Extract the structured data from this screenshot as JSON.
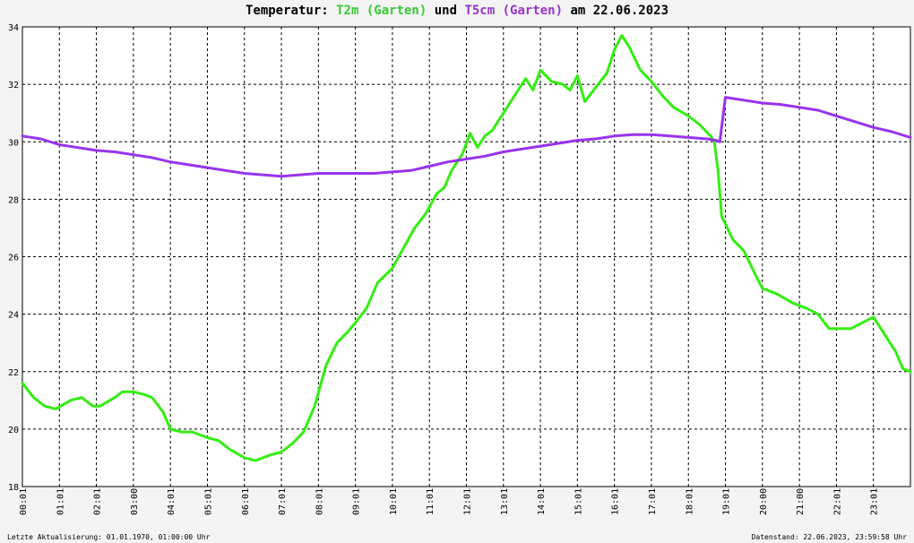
{
  "title": {
    "prefix": "Temperatur: ",
    "series1": "T2m (Garten)",
    "join": " und ",
    "series2": "T5cm (Garten)",
    "suffix": " am 22.06.2023"
  },
  "footer": {
    "left": "Letzte Aktualisierung: 01.01.1970, 01:00:00 Uhr",
    "right": "Datenstand: 22.06.2023, 23:59:58 Uhr"
  },
  "colors": {
    "t2m": "#33ee11",
    "t5cm": "#9933ee",
    "grid": "#000000",
    "background": "#ffffff"
  },
  "chart_data": {
    "type": "line",
    "title": "Temperatur: T2m (Garten) und T5cm (Garten) am 22.06.2023",
    "xlabel": "",
    "ylabel": "",
    "x_unit": "hours",
    "xlim": [
      0,
      24
    ],
    "ylim": [
      18,
      34
    ],
    "y_ticks": [
      18,
      20,
      22,
      24,
      26,
      28,
      30,
      32,
      34
    ],
    "x_tick_labels": [
      "00:01",
      "01:01",
      "02:01",
      "03:00",
      "04:01",
      "05:01",
      "06:01",
      "07:01",
      "08:01",
      "09:01",
      "10:01",
      "11:01",
      "12:01",
      "13:01",
      "14:01",
      "15:01",
      "16:01",
      "17:01",
      "18:01",
      "19:01",
      "20:00",
      "21:00",
      "22:01",
      "23:01"
    ],
    "grid": true,
    "series": [
      {
        "name": "T2m (Garten)",
        "color": "#33ee11",
        "x": [
          0,
          0.3,
          0.6,
          0.9,
          1.3,
          1.6,
          1.9,
          2.1,
          2.5,
          2.7,
          3.0,
          3.3,
          3.5,
          3.8,
          4.0,
          4.3,
          4.6,
          5.0,
          5.3,
          5.6,
          6.0,
          6.3,
          6.7,
          7.0,
          7.3,
          7.6,
          7.9,
          8.2,
          8.5,
          8.8,
          9.0,
          9.3,
          9.6,
          10.0,
          10.3,
          10.6,
          10.9,
          11.2,
          11.4,
          11.6,
          11.9,
          12.1,
          12.3,
          12.5,
          12.7,
          13.0,
          13.3,
          13.6,
          13.8,
          14.0,
          14.3,
          14.6,
          14.8,
          15.0,
          15.2,
          15.5,
          15.8,
          16.0,
          16.2,
          16.4,
          16.7,
          17.0,
          17.3,
          17.6,
          18.0,
          18.3,
          18.6,
          18.7,
          18.8,
          18.9,
          19.2,
          19.5,
          19.8,
          20.0,
          20.4,
          20.8,
          21.2,
          21.5,
          21.8,
          22.0,
          22.4,
          22.7,
          23.0,
          23.3,
          23.6,
          23.8,
          24.0
        ],
        "values": [
          21.6,
          21.1,
          20.8,
          20.7,
          21.0,
          21.1,
          20.8,
          20.8,
          21.1,
          21.3,
          21.3,
          21.2,
          21.1,
          20.6,
          20.0,
          19.9,
          19.9,
          19.7,
          19.6,
          19.3,
          19.0,
          18.9,
          19.1,
          19.2,
          19.5,
          19.9,
          20.8,
          22.2,
          23.0,
          23.4,
          23.7,
          24.2,
          25.1,
          25.6,
          26.3,
          27.0,
          27.5,
          28.2,
          28.4,
          29.0,
          29.6,
          30.3,
          29.8,
          30.2,
          30.4,
          31.0,
          31.6,
          32.2,
          31.8,
          32.5,
          32.1,
          32.0,
          31.8,
          32.3,
          31.4,
          31.9,
          32.4,
          33.2,
          33.7,
          33.3,
          32.5,
          32.1,
          31.6,
          31.2,
          30.9,
          30.6,
          30.2,
          30.0,
          29.0,
          27.4,
          26.6,
          26.2,
          25.4,
          24.9,
          24.7,
          24.4,
          24.2,
          24.0,
          23.5,
          23.5,
          23.5,
          23.7,
          23.9,
          23.3,
          22.7,
          22.1,
          22.0
        ]
      },
      {
        "name": "T5cm (Garten)",
        "color": "#9933ee",
        "x": [
          0,
          0.5,
          1.0,
          1.5,
          2.0,
          2.5,
          3.0,
          3.5,
          4.0,
          4.5,
          5.0,
          5.5,
          6.0,
          6.5,
          7.0,
          7.5,
          8.0,
          8.5,
          9.0,
          9.5,
          10.0,
          10.5,
          11.0,
          11.5,
          12.0,
          12.5,
          13.0,
          13.5,
          14.0,
          14.5,
          15.0,
          15.5,
          16.0,
          16.5,
          17.0,
          17.5,
          18.0,
          18.5,
          18.75,
          18.85,
          19.0,
          19.5,
          20.0,
          20.5,
          21.0,
          21.5,
          22.0,
          22.5,
          23.0,
          23.5,
          24.0
        ],
        "values": [
          30.2,
          30.1,
          29.9,
          29.8,
          29.7,
          29.65,
          29.55,
          29.45,
          29.3,
          29.2,
          29.1,
          29.0,
          28.9,
          28.85,
          28.8,
          28.85,
          28.9,
          28.9,
          28.9,
          28.9,
          28.95,
          29.0,
          29.15,
          29.3,
          29.4,
          29.5,
          29.65,
          29.75,
          29.85,
          29.95,
          30.05,
          30.1,
          30.2,
          30.25,
          30.25,
          30.2,
          30.15,
          30.1,
          30.05,
          30.0,
          31.55,
          31.45,
          31.35,
          31.3,
          31.2,
          31.1,
          30.9,
          30.7,
          30.5,
          30.35,
          30.15
        ]
      }
    ]
  }
}
